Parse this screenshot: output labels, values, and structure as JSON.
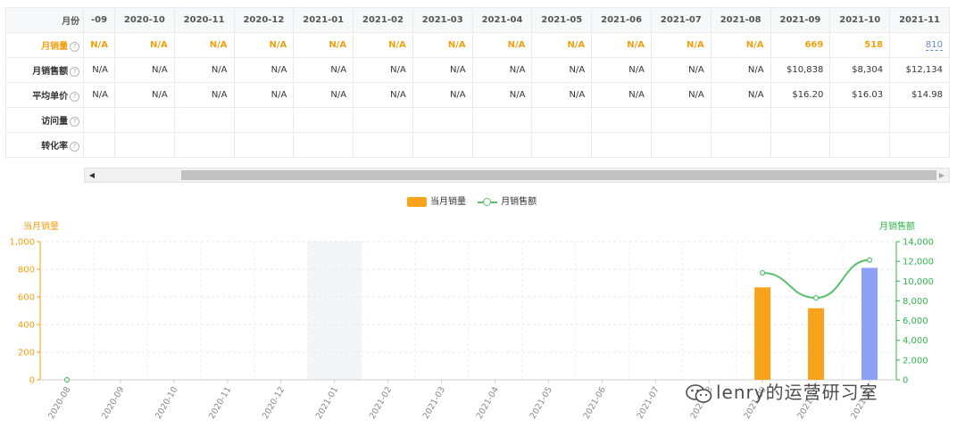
{
  "table": {
    "header_label": "月份",
    "first_col_fragment": "-09",
    "months": [
      "2020-10",
      "2020-11",
      "2020-12",
      "2021-01",
      "2021-02",
      "2021-03",
      "2021-04",
      "2021-05",
      "2021-06",
      "2021-07",
      "2021-08",
      "2021-09",
      "2021-10",
      "2021-11"
    ],
    "help_glyph": "?",
    "rows": [
      {
        "label": "月销量",
        "first": "N/A",
        "values": [
          "N/A",
          "N/A",
          "N/A",
          "N/A",
          "N/A",
          "N/A",
          "N/A",
          "N/A",
          "N/A",
          "N/A",
          "N/A",
          "669",
          "518",
          "810"
        ],
        "style": "sales"
      },
      {
        "label": "月销售额",
        "first": "N/A",
        "values": [
          "N/A",
          "N/A",
          "N/A",
          "N/A",
          "N/A",
          "N/A",
          "N/A",
          "N/A",
          "N/A",
          "N/A",
          "N/A",
          "$10,838",
          "$8,304",
          "$12,134"
        ],
        "style": "normal"
      },
      {
        "label": "平均单价",
        "first": "N/A",
        "values": [
          "N/A",
          "N/A",
          "N/A",
          "N/A",
          "N/A",
          "N/A",
          "N/A",
          "N/A",
          "N/A",
          "N/A",
          "N/A",
          "$16.20",
          "$16.03",
          "$14.98"
        ],
        "style": "normal"
      },
      {
        "label": "访问量",
        "first": "",
        "values": [
          "",
          "",
          "",
          "",
          "",
          "",
          "",
          "",
          "",
          "",
          "",
          "",
          "",
          ""
        ],
        "style": "normal"
      },
      {
        "label": "转化率",
        "first": "",
        "values": [
          "",
          "",
          "",
          "",
          "",
          "",
          "",
          "",
          "",
          "",
          "",
          "",
          "",
          ""
        ],
        "style": "normal"
      }
    ]
  },
  "scrollbar": {
    "left_arrow": "◀",
    "right_arrow": "▶"
  },
  "chart_data": {
    "type": "bar",
    "categories": [
      "2020-08",
      "2020-09",
      "2020-10",
      "2020-11",
      "2020-12",
      "2021-01",
      "2021-02",
      "2021-03",
      "2021-04",
      "2021-05",
      "2021-06",
      "2021-07",
      "2021-08",
      "2021-09",
      "2021-10",
      "2021-11"
    ],
    "series": [
      {
        "name": "当月销量",
        "type": "bar",
        "axis": "left",
        "values": [
          null,
          null,
          null,
          null,
          null,
          null,
          null,
          null,
          null,
          null,
          null,
          null,
          null,
          669,
          518,
          810
        ],
        "color": "#f7a41c",
        "highlight_color": "#8ca0f5"
      },
      {
        "name": "月销售额",
        "type": "line",
        "axis": "right",
        "values": [
          0,
          null,
          null,
          null,
          null,
          null,
          null,
          null,
          null,
          null,
          null,
          null,
          null,
          10838,
          8304,
          12134
        ],
        "color": "#5bbf6b"
      }
    ],
    "y_left": {
      "label": "当月销量",
      "ylim": [
        0,
        1000
      ],
      "ticks": [
        "0",
        "200",
        "400",
        "600",
        "800",
        "1,000"
      ],
      "color": "#f0a010"
    },
    "y_right": {
      "label": "月销售额",
      "ylim": [
        0,
        14000
      ],
      "ticks": [
        "0",
        "2,000",
        "4,000",
        "6,000",
        "8,000",
        "10,000",
        "12,000",
        "14,000"
      ],
      "color": "#2fb54a"
    },
    "hover_category": "2021-01",
    "highlight_category": "2021-11",
    "grid": true,
    "legend_position": "top-center"
  },
  "watermark": {
    "text": "lenry的运营研习室"
  }
}
